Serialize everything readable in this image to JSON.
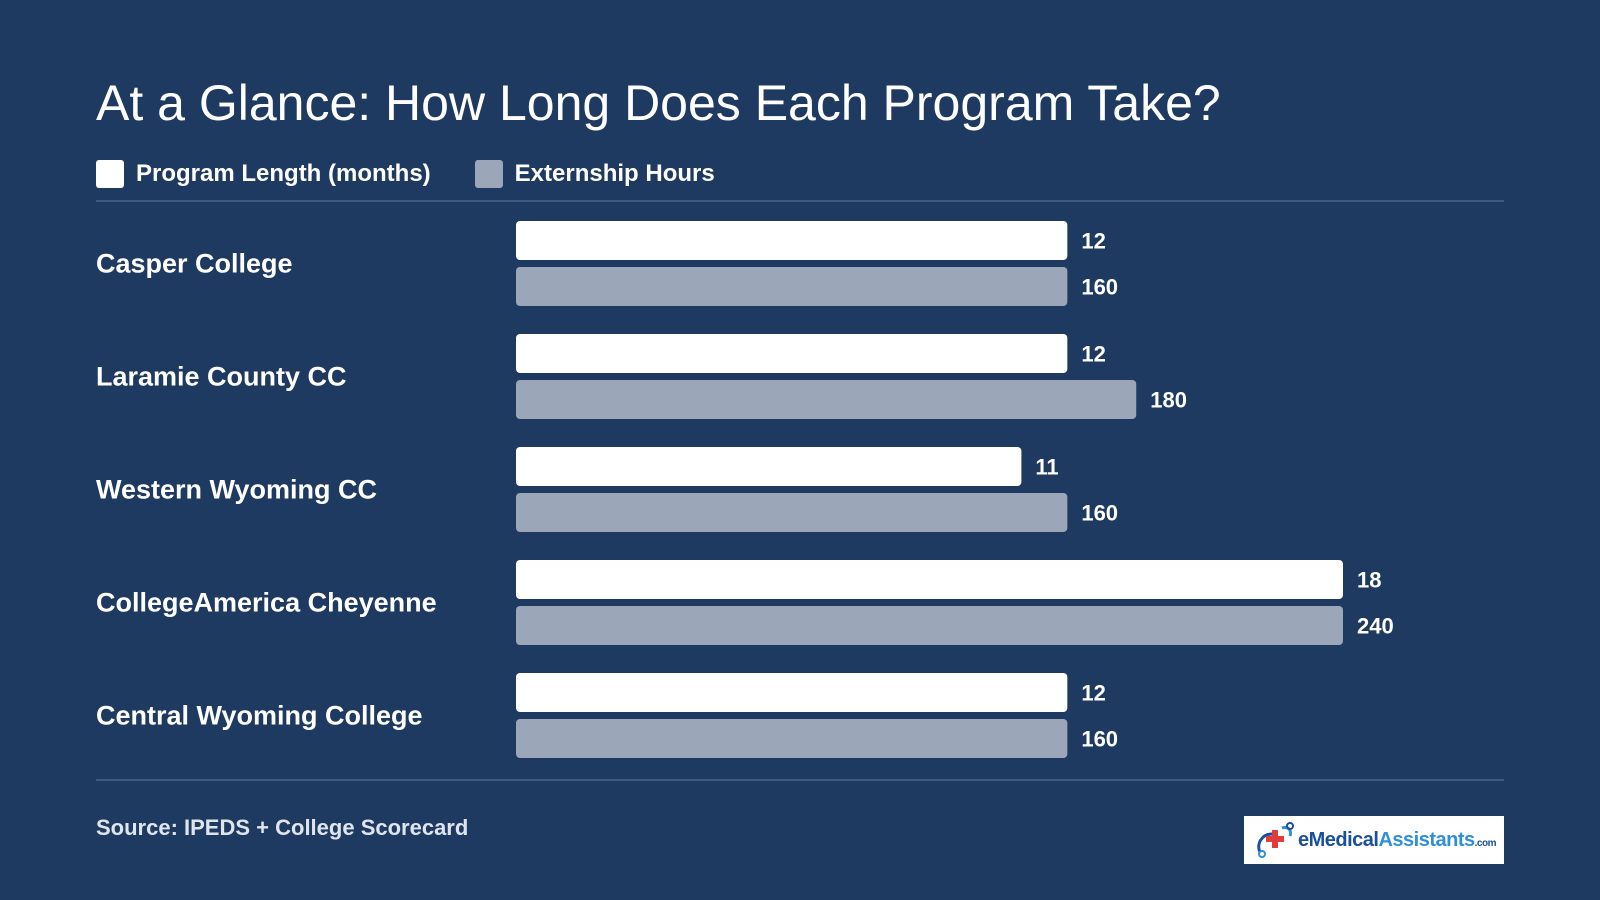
{
  "page": {
    "title": "At a Glance: How Long Does Each Program Take?",
    "source": "Source: IPEDS + College Scorecard",
    "logo": {
      "brand": "eMedical",
      "brand2": "Assistants",
      "tld": ".com"
    }
  },
  "colors": {
    "background": "#1f3a60",
    "program_length": "#ffffff",
    "externship_hours": "#9ba6b9"
  },
  "chart_data": {
    "type": "bar",
    "orientation": "horizontal",
    "title": "At a Glance: How Long Does Each Program Take?",
    "categories": [
      "Casper College",
      "Laramie County CC",
      "Western Wyoming CC",
      "CollegeAmerica Cheyenne",
      "Central Wyoming College"
    ],
    "series": [
      {
        "name": "Program Length (months)",
        "color": "#ffffff",
        "values": [
          12,
          12,
          11,
          18,
          12
        ],
        "max": 18
      },
      {
        "name": "Externship Hours",
        "color": "#9ba6b9",
        "values": [
          160,
          180,
          160,
          240,
          160
        ],
        "max": 240
      }
    ],
    "legend": "top-left",
    "grid": false,
    "data_labels": true
  }
}
